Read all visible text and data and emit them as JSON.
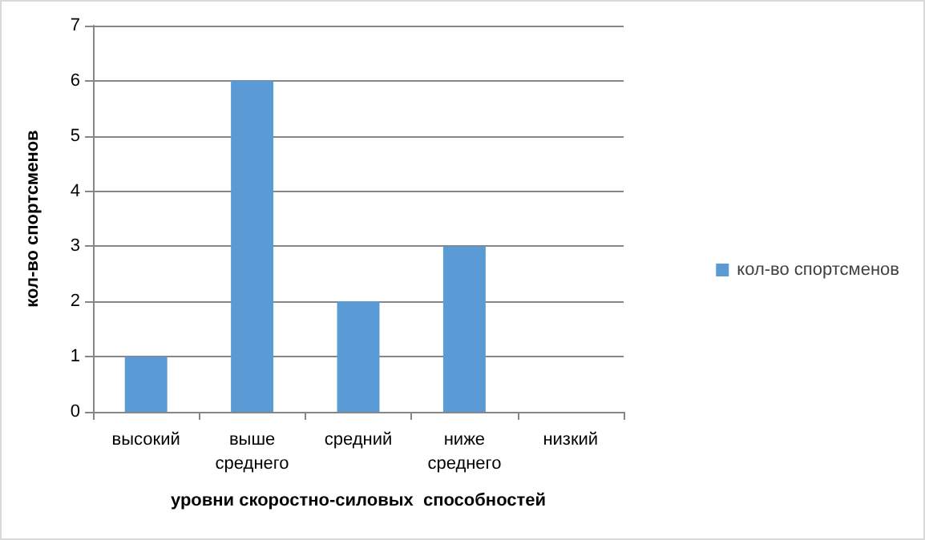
{
  "chart_data": {
    "type": "bar",
    "categories": [
      "высокий",
      "выше среднего",
      "средний",
      "ниже среднего",
      "низкий"
    ],
    "series": [
      {
        "name": "кол-во спортсменов",
        "color": "#5b9bd5",
        "values": [
          1,
          6,
          2,
          3,
          0
        ]
      }
    ],
    "xlabel": "уровни скоростно-силовых  способностей",
    "ylabel": "кол-во спортсменов",
    "ylim": [
      0,
      7
    ],
    "yticks": [
      0,
      1,
      2,
      3,
      4,
      5,
      6,
      7
    ],
    "grid": "y",
    "legend": "right"
  }
}
